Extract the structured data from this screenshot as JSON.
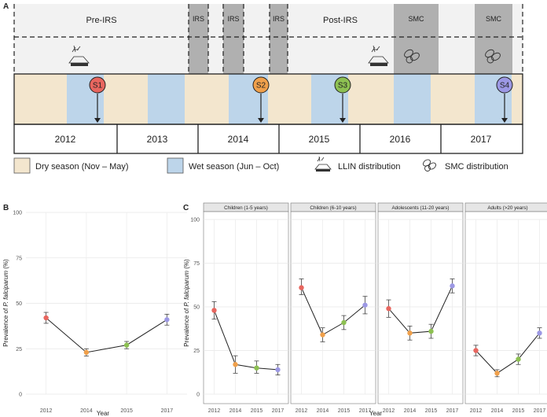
{
  "panel_a": {
    "panel_label": "A",
    "phases": [
      {
        "label": "Pre-IRS"
      },
      {
        "label": "IRS"
      },
      {
        "label": "IRS"
      },
      {
        "label": "IRS"
      },
      {
        "label": "Post-IRS"
      },
      {
        "label": "SMC"
      },
      {
        "label": "SMC"
      }
    ],
    "surveys": [
      {
        "label": "S1",
        "color": "#E8665F"
      },
      {
        "label": "S2",
        "color": "#F0A04B"
      },
      {
        "label": "S3",
        "color": "#8DC052"
      },
      {
        "label": "S4",
        "color": "#9C98E4"
      }
    ],
    "years": [
      "2012",
      "2013",
      "2014",
      "2015",
      "2016",
      "2017"
    ],
    "legend": {
      "dry": "Dry season (Nov – May)",
      "wet": "Wet season (Jun – Oct)",
      "llin": "LLIN distribution",
      "smc": "SMC distribution"
    },
    "colors": {
      "dry": "#F3E6CE",
      "wet": "#BDD5EA",
      "irs": "#B0B0B0",
      "phase_bg": "#F2F2F2"
    },
    "icons": {
      "llin": "net-icon",
      "smc": "pills-icon"
    }
  },
  "chart_data": [
    {
      "type": "line",
      "panel_label": "B",
      "title": "",
      "xlabel": "Year",
      "ylabel_prefix": "Prevalence of ",
      "ylabel_italic": "P. falciparum",
      "ylabel_suffix": " (%)",
      "x": [
        "2012",
        "2014",
        "2015",
        "2017"
      ],
      "ylim": [
        0,
        100
      ],
      "yticks": [
        0,
        25,
        50,
        75,
        100
      ],
      "grid": true,
      "point_colors": [
        "#E8665F",
        "#F0A04B",
        "#8DC052",
        "#9C98E4"
      ],
      "series": [
        {
          "values": [
            42,
            23,
            27,
            41
          ],
          "lower": [
            39,
            21,
            25,
            38
          ],
          "upper": [
            45,
            25,
            29,
            44
          ]
        }
      ]
    },
    {
      "type": "line",
      "panel_label": "C",
      "xlabel": "Year",
      "ylabel_prefix": "Prevalence of ",
      "ylabel_italic": "P. falciparum",
      "ylabel_suffix": " (%)",
      "x": [
        "2012",
        "2014",
        "2015",
        "2017"
      ],
      "ylim": [
        0,
        100
      ],
      "yticks": [
        0,
        25,
        50,
        75,
        100
      ],
      "grid": true,
      "point_colors": [
        "#E8665F",
        "#F0A04B",
        "#8DC052",
        "#9C98E4"
      ],
      "facets": [
        {
          "title": "Children (1-5 years)",
          "values": [
            48,
            17,
            15,
            14
          ],
          "lower": [
            43,
            12,
            12,
            11
          ],
          "upper": [
            53,
            22,
            19,
            17
          ]
        },
        {
          "title": "Children (6-10 years)",
          "values": [
            61,
            34,
            41,
            51
          ],
          "lower": [
            57,
            30,
            37,
            46
          ],
          "upper": [
            66,
            38,
            45,
            56
          ]
        },
        {
          "title": "Adolescents (11-20 years)",
          "values": [
            49,
            35,
            36,
            62
          ],
          "lower": [
            44,
            31,
            32,
            58
          ],
          "upper": [
            54,
            39,
            40,
            66
          ]
        },
        {
          "title": "Adults (>20 years)",
          "values": [
            25,
            12,
            20,
            35
          ],
          "lower": [
            22,
            10,
            17,
            32
          ],
          "upper": [
            28,
            14,
            23,
            38
          ]
        }
      ]
    }
  ]
}
